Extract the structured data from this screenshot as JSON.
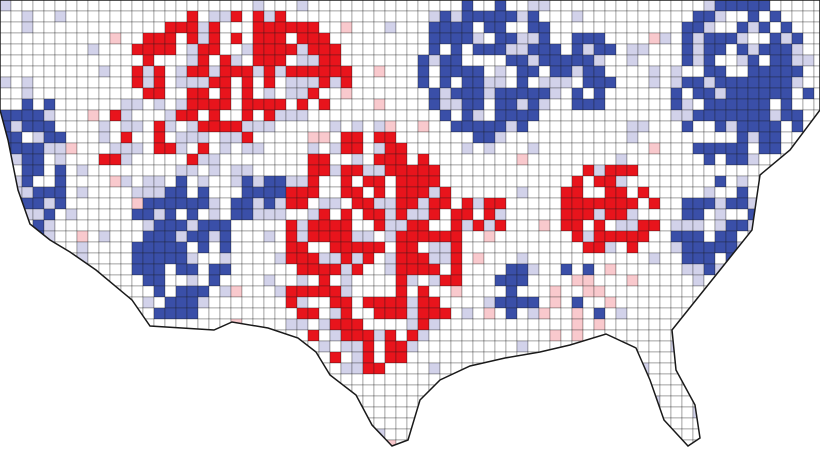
{
  "map": {
    "colors": {
      "red": "#e8141c",
      "blue": "#3a4fa8",
      "lavender": "#d2d2ea",
      "pink": "#f9c9cd",
      "white": "#ffffff"
    },
    "border": "#1a1a1a"
  }
}
